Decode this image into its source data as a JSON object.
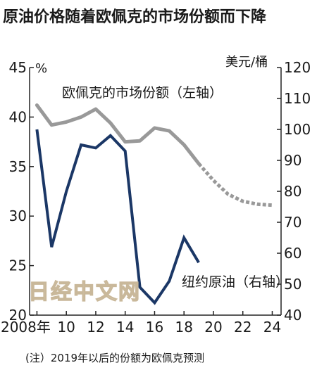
{
  "chart_data": {
    "type": "line",
    "title": "原油价格随着欧佩克的市场份额而下降",
    "left_axis": {
      "unit": "%",
      "ylim": [
        20,
        45
      ],
      "ticks": [
        20,
        25,
        30,
        35,
        40,
        45
      ]
    },
    "right_axis": {
      "unit": "美元/桶",
      "ylim": [
        40,
        120
      ],
      "ticks": [
        40,
        50,
        60,
        70,
        80,
        90,
        100,
        110,
        120
      ]
    },
    "x_axis": {
      "xlim": [
        2007.5,
        2024.6
      ],
      "ticks": [
        2008,
        2010,
        2012,
        2014,
        2016,
        2018,
        2020,
        2022,
        2024
      ],
      "tick_labels": [
        "2008年",
        "10",
        "12",
        "14",
        "16",
        "18",
        "20",
        "22",
        "24"
      ]
    },
    "series": [
      {
        "name": "欧佩克的市场份额（左轴）",
        "axis": "left",
        "color": "#999999",
        "x": [
          2008,
          2009,
          2010,
          2011,
          2012,
          2013,
          2014,
          2015,
          2016,
          2017,
          2018,
          2019
        ],
        "y": [
          41.2,
          39.2,
          39.5,
          40.0,
          40.8,
          39.4,
          37.5,
          37.6,
          38.9,
          38.6,
          37.2,
          35.3
        ],
        "forecast": {
          "x": [
            2019,
            2020,
            2021,
            2022,
            2023,
            2024
          ],
          "y": [
            35.3,
            33.6,
            32.2,
            31.5,
            31.2,
            31.1
          ]
        }
      },
      {
        "name": "纽约原油（右轴）",
        "axis": "right",
        "color": "#1b3766",
        "x": [
          2008,
          2009,
          2010,
          2011,
          2012,
          2013,
          2014,
          2015,
          2016,
          2017,
          2018,
          2019
        ],
        "y": [
          100,
          62,
          80,
          95,
          94,
          98,
          93,
          49,
          44,
          51,
          65,
          57
        ]
      }
    ],
    "note": "(注）2019年以后的份额为欧佩克预测",
    "watermark": "日经中文网"
  }
}
